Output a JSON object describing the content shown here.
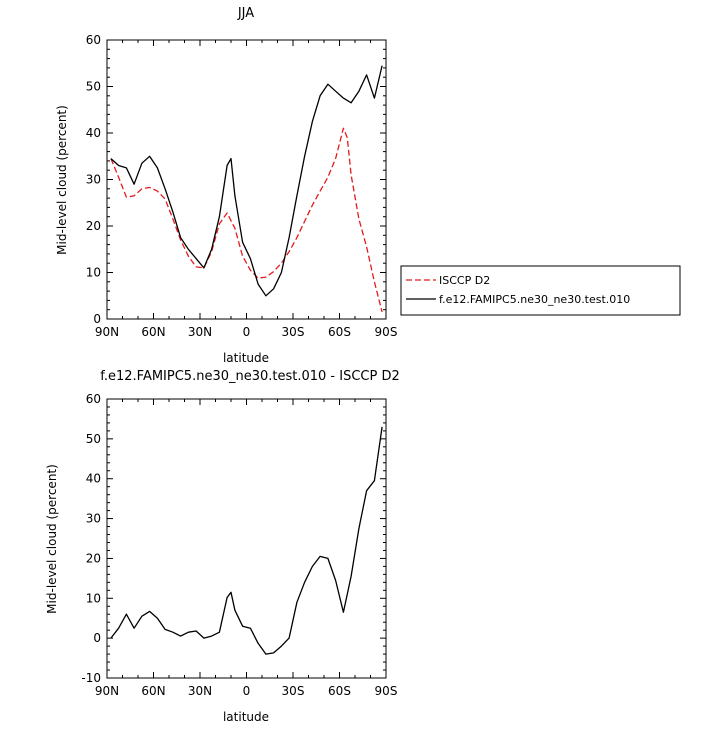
{
  "chart_data": [
    {
      "type": "line",
      "title": "JJA",
      "xlabel": "latitude",
      "ylabel": "Mid-level cloud (percent)",
      "xlim": [
        90,
        -90
      ],
      "ylim": [
        0,
        60
      ],
      "xticks": [
        90,
        60,
        30,
        0,
        -30,
        -60,
        -90
      ],
      "xtick_labels": [
        "90N",
        "60N",
        "30N",
        "0",
        "30S",
        "60S",
        "90S"
      ],
      "yticks": [
        0,
        10,
        20,
        30,
        40,
        50,
        60
      ],
      "ytick_labels": [
        "0",
        "10",
        "20",
        "30",
        "40",
        "50",
        "60"
      ],
      "legend_position": "right",
      "series": [
        {
          "name": "ISCCP D2",
          "color": "#e41a1c",
          "style": "dashed",
          "x": [
            87.5,
            82.5,
            77.5,
            72.5,
            67.5,
            62.5,
            57.5,
            52.5,
            47.5,
            42.5,
            37.5,
            32.5,
            27.5,
            22.5,
            17.5,
            12.5,
            7.5,
            2.5,
            -2.5,
            -7.5,
            -12.5,
            -17.5,
            -22.5,
            -27.5,
            -32.5,
            -37.5,
            -42.5,
            -47.5,
            -52.5,
            -57.5,
            -62.5,
            -65,
            -67.5,
            -72.5,
            -77.5,
            -82.5,
            -87.5
          ],
          "y": [
            34.5,
            30.5,
            26.2,
            26.5,
            28.0,
            28.3,
            27.5,
            25.8,
            21.5,
            17.0,
            13.5,
            11.2,
            11.0,
            14.5,
            20.5,
            22.8,
            19.5,
            13.5,
            10.5,
            8.8,
            9.0,
            10.2,
            12.0,
            14.5,
            17.5,
            21.0,
            24.5,
            27.5,
            30.5,
            34.5,
            41.0,
            39.0,
            31.0,
            21.5,
            15.5,
            8.0,
            1.5
          ]
        },
        {
          "name": "f.e12.FAMIPC5.ne30_ne30.test.010",
          "color": "#000000",
          "style": "solid",
          "x": [
            87.5,
            82.5,
            77.5,
            72.5,
            67.5,
            62.5,
            57.5,
            52.5,
            47.5,
            42.5,
            37.5,
            32.5,
            27.5,
            22.5,
            17.5,
            12.5,
            10,
            7.5,
            2.5,
            -2.5,
            -7.5,
            -12.5,
            -17.5,
            -22.5,
            -27.5,
            -32.5,
            -37.5,
            -42.5,
            -47.5,
            -52.5,
            -57.5,
            -62.5,
            -67.5,
            -72.5,
            -77.5,
            -82.5,
            -87.5
          ],
          "y": [
            34.5,
            33.0,
            32.5,
            29.0,
            33.5,
            35.0,
            32.5,
            28.0,
            23.0,
            17.5,
            15.0,
            13.0,
            11.0,
            15.0,
            22.0,
            33.0,
            34.5,
            26.5,
            16.5,
            13.0,
            7.5,
            5.0,
            6.5,
            10.0,
            17.5,
            26.5,
            35.0,
            42.5,
            48.0,
            50.5,
            49.0,
            47.5,
            46.5,
            49.0,
            52.5,
            47.5,
            54.5
          ]
        }
      ]
    },
    {
      "type": "line",
      "title": "f.e12.FAMIPC5.ne30_ne30.test.010 - ISCCP D2",
      "xlabel": "latitude",
      "ylabel": "Mid-level cloud (percent)",
      "xlim": [
        90,
        -90
      ],
      "ylim": [
        -10,
        60
      ],
      "xticks": [
        90,
        60,
        30,
        0,
        -30,
        -60,
        -90
      ],
      "xtick_labels": [
        "90N",
        "60N",
        "30N",
        "0",
        "30S",
        "60S",
        "90S"
      ],
      "yticks": [
        -10,
        0,
        10,
        20,
        30,
        40,
        50,
        60
      ],
      "ytick_labels": [
        "-10",
        "0",
        "10",
        "20",
        "30",
        "40",
        "50",
        "60"
      ],
      "series": [
        {
          "color": "#000000",
          "style": "solid",
          "x": [
            87.5,
            82.5,
            77.5,
            72.5,
            67.5,
            62.5,
            57.5,
            52.5,
            47.5,
            42.5,
            37.5,
            32.5,
            27.5,
            22.5,
            17.5,
            12.5,
            10,
            7.5,
            2.5,
            -2.5,
            -7.5,
            -12.5,
            -17.5,
            -22.5,
            -27.5,
            -32.5,
            -37.5,
            -42.5,
            -47.5,
            -52.5,
            -57.5,
            -62.5,
            -67.5,
            -72.5,
            -77.5,
            -82.5,
            -87.5
          ],
          "y": [
            0,
            2.5,
            6.0,
            2.5,
            5.5,
            6.7,
            5.0,
            2.2,
            1.5,
            0.5,
            1.5,
            1.8,
            0.0,
            0.5,
            1.5,
            10.2,
            11.5,
            7.0,
            3.0,
            2.5,
            -1.3,
            -4.0,
            -3.7,
            -2.0,
            0.0,
            9.0,
            14.0,
            18.0,
            20.5,
            20.0,
            14.5,
            6.5,
            15.5,
            27.5,
            37.0,
            39.5,
            53.0
          ]
        }
      ]
    }
  ]
}
